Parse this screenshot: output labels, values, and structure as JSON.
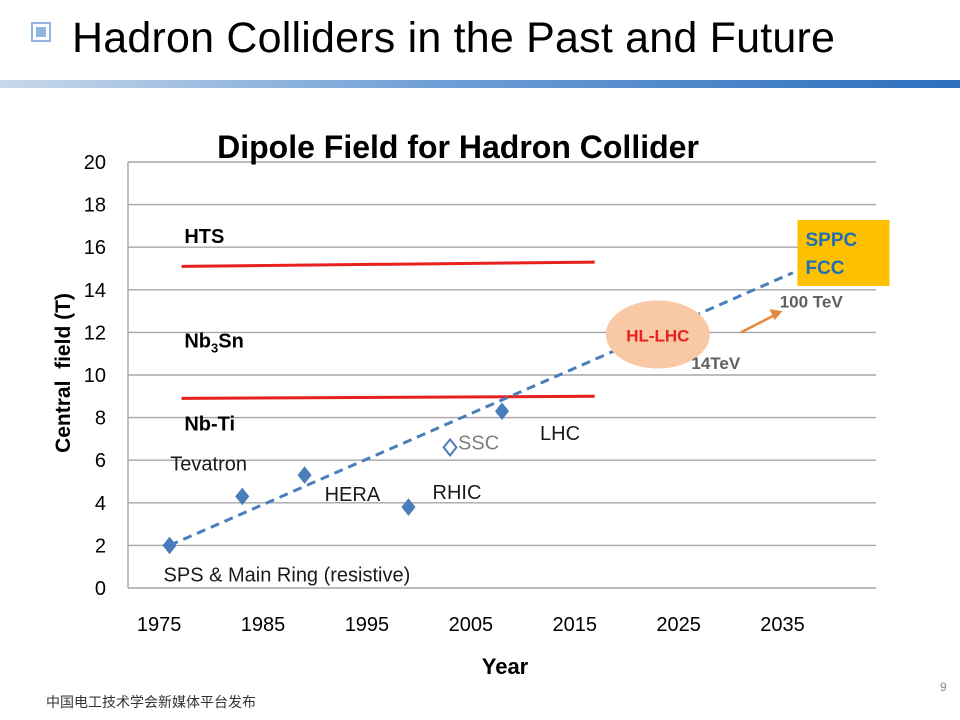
{
  "slide": {
    "title": "Hadron Colliders in the Past and Future",
    "footer": "中国电工技术学会新媒体平台发布",
    "page_number": "9"
  },
  "colors": {
    "accent_blue": "#4a7ebb",
    "marker": "#4a7ebb",
    "limit_line": "#e8201e",
    "hl_lhc_fill": "#f9c9a6",
    "hl_lhc_text": "#e8201e",
    "sppc_fill": "#ffc000",
    "sppc_text": "#1f6fb3",
    "arrow": "#e58a3a",
    "gray_text": "#606060"
  },
  "chart_data": {
    "type": "scatter",
    "title": "Dipole Field for Hadron Collider",
    "xlabel": "Year",
    "ylabel": "Central  field (T)",
    "xlim": [
      1972,
      2044
    ],
    "ylim": [
      0,
      20
    ],
    "x_ticks": [
      1975,
      1985,
      1995,
      2005,
      2015,
      2025,
      2035
    ],
    "y_ticks": [
      0,
      2,
      4,
      6,
      8,
      10,
      12,
      14,
      16,
      18,
      20
    ],
    "grid": true,
    "points": [
      {
        "label": "SPS & Main Ring (resistive)",
        "x": 1976,
        "y": 2.0,
        "marker": "filled"
      },
      {
        "label": "Tevatron",
        "x": 1983,
        "y": 4.3,
        "marker": "filled"
      },
      {
        "label": "HERA",
        "x": 1989,
        "y": 5.3,
        "marker": "filled"
      },
      {
        "label": "RHIC",
        "x": 1999,
        "y": 3.8,
        "marker": "filled"
      },
      {
        "label": "SSC",
        "x": 2003,
        "y": 6.6,
        "marker": "open"
      },
      {
        "label": "LHC",
        "x": 2008,
        "y": 8.3,
        "marker": "filled"
      }
    ],
    "limit_lines": [
      {
        "label": "HTS",
        "x_start": 1976,
        "x_end": 2015,
        "y_start": 15.1,
        "y_end": 15.3
      },
      {
        "label": "Nb3Sn",
        "x_start": 1976,
        "x_end": 2015,
        "y_start": 8.9,
        "y_end": 9.0
      }
    ],
    "material_labels": [
      {
        "text": "HTS",
        "x": 1978,
        "y": 16.2
      },
      {
        "text": "Nb",
        "sub": "3",
        "text_after": "Sn",
        "x": 1978,
        "y": 11.3
      },
      {
        "text": "Nb-Ti",
        "x": 1978,
        "y": 7.4
      }
    ],
    "trend_line": {
      "x_start": 1976,
      "y_start": 2.0,
      "x_end": 2036,
      "y_end": 14.8
    },
    "annotations": {
      "hl_lhc": {
        "label": "HL-LHC",
        "x": 2023,
        "y": 11.9
      },
      "hl_lhc_energy": {
        "label": "14TeV",
        "x": 2027,
        "y": 10.6
      },
      "sppc": {
        "line1": "SPPC",
        "line2": "FCC",
        "x": 2037.5,
        "y": 15.5
      },
      "fcc_energy": {
        "label": "100 TeV",
        "x": 2035.5,
        "y": 13.4
      },
      "arrow": {
        "x_start": 2031,
        "y_start": 12.0,
        "x_end": 2035,
        "y_end": 13.0
      }
    }
  }
}
